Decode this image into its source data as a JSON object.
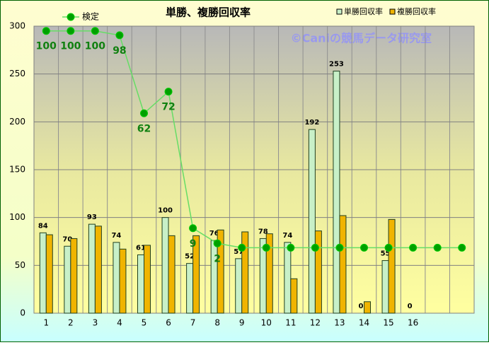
{
  "chart_data": {
    "type": "bar",
    "title": "単勝、複勝回収率",
    "annotation": "©Caniの競馬データ研究室",
    "categories": [
      "1",
      "2",
      "3",
      "4",
      "5",
      "6",
      "7",
      "8",
      "9",
      "10",
      "11",
      "12",
      "13",
      "14",
      "15",
      "16",
      null,
      null
    ],
    "series": [
      {
        "name": "単勝回収率",
        "color": "#c8f0c8",
        "values": [
          84,
          70,
          93,
          74,
          61,
          100,
          52,
          76,
          57,
          78,
          74,
          192,
          253,
          0,
          55,
          0,
          null,
          null
        ]
      },
      {
        "name": "複勝回収率",
        "color": "#f0b400",
        "values": [
          82,
          78,
          91,
          67,
          71,
          81,
          81,
          87,
          85,
          83,
          36,
          86,
          102,
          12,
          98,
          0,
          null,
          null
        ]
      },
      {
        "name": "検定",
        "type": "line",
        "axis": "y2",
        "color": "#00a000",
        "line_color": "#66dd66",
        "values": [
          100,
          100,
          100,
          98,
          62,
          72,
          9,
          2,
          0,
          0,
          0,
          0,
          0,
          0,
          0,
          0,
          0,
          0
        ],
        "value_labels": [
          "100",
          "100",
          "100",
          "98",
          "62",
          "72",
          "9",
          "2",
          null,
          null,
          null,
          null,
          null,
          null,
          null,
          null,
          null,
          null
        ]
      }
    ],
    "ylim": [
      0,
      300
    ],
    "yticks": [
      0,
      50,
      100,
      150,
      200,
      250,
      300
    ],
    "y2lim": [
      -30.2,
      102.2
    ],
    "grid": true
  }
}
